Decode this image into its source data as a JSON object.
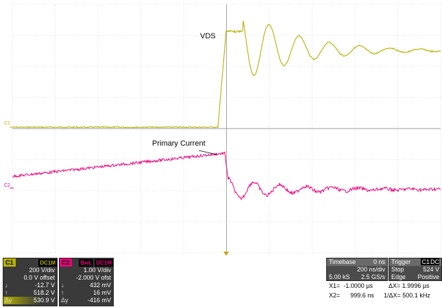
{
  "annotations": {
    "vds": "VDS",
    "primary_current": "Primary Current"
  },
  "channels": {
    "c1": {
      "marker": "C1",
      "color": "#b5b000"
    },
    "c2": {
      "marker": "C2",
      "color": "#e8007a"
    }
  },
  "panel_c1": {
    "tag": "C1",
    "coupling": "DC1M",
    "scale": "200 V/div",
    "offset": "0.0 V offset",
    "rows": [
      {
        "label": "↓",
        "value": "-12.7 V"
      },
      {
        "label": "↑",
        "value": "518.2 V"
      },
      {
        "label": "Δy",
        "value": "530.9 V"
      }
    ]
  },
  "panel_c2": {
    "tag": "C2",
    "bwl": "BwL",
    "coupling": "DC1M",
    "scale": "1.00 V/div",
    "offset": "-2.000 V ofst",
    "rows": [
      {
        "label": "↓",
        "value": "432 mV"
      },
      {
        "label": "↑",
        "value": "16 mV"
      },
      {
        "label": "Δy",
        "value": "-416 mV"
      }
    ]
  },
  "timebase": {
    "title": "Timebase",
    "delay": "0 ns",
    "per_div": "200 ns/div",
    "samples": "5.00 kS",
    "rate": "2.5 GS/s"
  },
  "trigger": {
    "title": "Trigger",
    "source": "C1",
    "coupling": "DC",
    "mode": "Stop",
    "level": "524 V",
    "type": "Edge",
    "slope": "Positive"
  },
  "cursors": {
    "x1_label": "X1=",
    "x1_value": "-1.0000 µs",
    "dx_label": "ΔX=",
    "dx_value": "1.9996 µs",
    "x2_label": "X2=",
    "x2_value": "999.6 ns",
    "inv_label": "1/ΔX=",
    "inv_value": "500.1 kHz"
  }
}
